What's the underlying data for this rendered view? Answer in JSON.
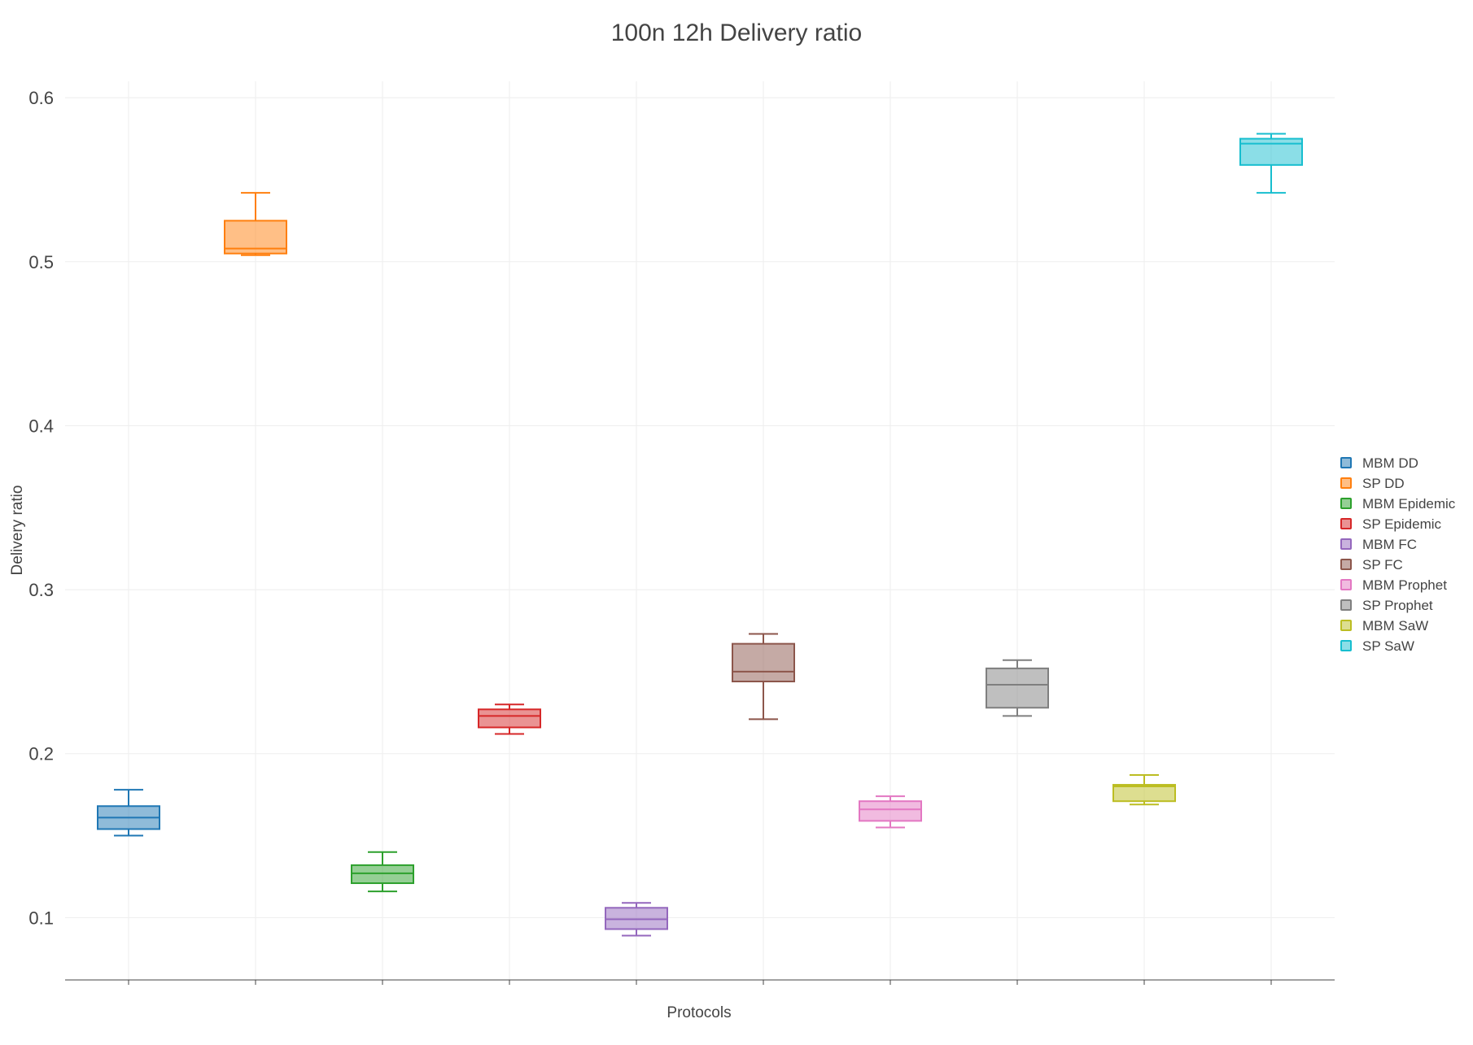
{
  "chart_data": {
    "type": "box",
    "title": "100n 12h Delivery ratio",
    "xlabel": "Protocols",
    "ylabel": "Delivery ratio",
    "ylim": [
      0.062,
      0.61
    ],
    "yticks": [
      0.1,
      0.2,
      0.3,
      0.4,
      0.5,
      0.6
    ],
    "ytick_labels": [
      "0.1",
      "0.2",
      "0.3",
      "0.4",
      "0.5",
      "0.6"
    ],
    "grid": true,
    "legend_position": "right",
    "series": [
      {
        "name": "MBM DD",
        "color": "#1f77b4",
        "min": 0.15,
        "q1": 0.154,
        "median": 0.161,
        "q3": 0.168,
        "max": 0.178
      },
      {
        "name": "SP DD",
        "color": "#ff7f0e",
        "min": 0.504,
        "q1": 0.505,
        "median": 0.508,
        "q3": 0.525,
        "max": 0.542
      },
      {
        "name": "MBM Epidemic",
        "color": "#2ca02c",
        "min": 0.116,
        "q1": 0.121,
        "median": 0.127,
        "q3": 0.132,
        "max": 0.14
      },
      {
        "name": "SP Epidemic",
        "color": "#d62728",
        "min": 0.212,
        "q1": 0.216,
        "median": 0.223,
        "q3": 0.227,
        "max": 0.23
      },
      {
        "name": "MBM FC",
        "color": "#9467bd",
        "min": 0.089,
        "q1": 0.093,
        "median": 0.099,
        "q3": 0.106,
        "max": 0.109
      },
      {
        "name": "SP FC",
        "color": "#8c564b",
        "min": 0.221,
        "q1": 0.244,
        "median": 0.25,
        "q3": 0.267,
        "max": 0.273
      },
      {
        "name": "MBM Prophet",
        "color": "#e377c2",
        "min": 0.155,
        "q1": 0.159,
        "median": 0.166,
        "q3": 0.171,
        "max": 0.174
      },
      {
        "name": "SP Prophet",
        "color": "#7f7f7f",
        "min": 0.223,
        "q1": 0.228,
        "median": 0.242,
        "q3": 0.252,
        "max": 0.257
      },
      {
        "name": "MBM SaW",
        "color": "#bcbd22",
        "min": 0.169,
        "q1": 0.171,
        "median": 0.18,
        "q3": 0.181,
        "max": 0.187
      },
      {
        "name": "SP SaW",
        "color": "#17becf",
        "min": 0.542,
        "q1": 0.559,
        "median": 0.572,
        "q3": 0.575,
        "max": 0.578
      }
    ]
  }
}
